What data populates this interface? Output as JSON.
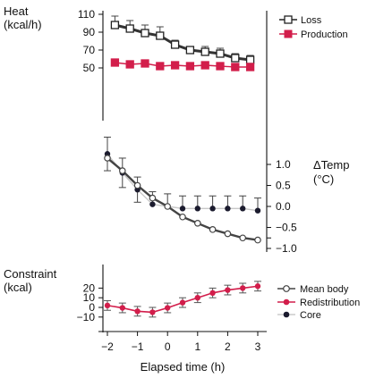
{
  "chart_data": [
    {
      "type": "line",
      "panel": "heat",
      "ylabel": "Heat\n(kcal/h)",
      "ylim": [
        40,
        110
      ],
      "yticks": [
        50,
        70,
        90,
        110
      ],
      "x": [
        -1.75,
        -1.25,
        -0.75,
        -0.25,
        0.25,
        0.75,
        1.25,
        1.75,
        2.25,
        2.75
      ],
      "series": [
        {
          "name": "Loss",
          "marker": "open-square",
          "color": "#222222",
          "values": [
            98,
            94,
            89,
            86,
            76,
            70,
            68,
            66,
            61,
            59
          ],
          "err": [
            10,
            9,
            9,
            10,
            5,
            4,
            6,
            6,
            5,
            5
          ]
        },
        {
          "name": "Production",
          "marker": "filled-square",
          "color": "#d21e4b",
          "values": [
            56,
            54,
            55,
            52,
            53,
            52,
            53,
            52,
            51,
            51
          ],
          "err": [
            4,
            4,
            4,
            4,
            4,
            4,
            4,
            4,
            4,
            4
          ]
        }
      ],
      "legend": "top-right"
    },
    {
      "type": "line",
      "panel": "temperature",
      "ylabel": "ΔTemp\n(°C)",
      "ylim": [
        -1.25,
        1.25
      ],
      "yticks": [
        1.0,
        0.5,
        0.0,
        -0.5,
        -1.0
      ],
      "yticklabels": [
        "1.0",
        "0.5",
        "0.0",
        "−0.5",
        "−1.0"
      ],
      "series": [
        {
          "name": "Mean body",
          "marker": "open-circle",
          "x": [
            -2,
            -1.5,
            -1,
            -0.5,
            0,
            0.5,
            1,
            1.5,
            2,
            2.5,
            3
          ],
          "values": [
            1.15,
            0.85,
            0.5,
            0.2,
            0.0,
            -0.25,
            -0.4,
            -0.55,
            -0.65,
            -0.75,
            -0.8
          ]
        },
        {
          "name": "Core",
          "marker": "filled-circle",
          "x": [
            -2,
            -1.5,
            -1,
            -0.5,
            0,
            0.5,
            1,
            1.5,
            2,
            2.5,
            3
          ],
          "values": [
            1.25,
            0.8,
            0.4,
            0.05,
            0.0,
            -0.05,
            -0.05,
            -0.05,
            -0.05,
            -0.05,
            -0.1
          ],
          "err": [
            0.4,
            0.35,
            0.3,
            0.3,
            0.3,
            0.3,
            0.3,
            0.3,
            0.3,
            0.3,
            0.3
          ]
        }
      ],
      "legend": "none"
    },
    {
      "type": "line",
      "panel": "constraint",
      "ylabel": "Constraint\n(kcal)",
      "ylim": [
        -12,
        27
      ],
      "yticks": [
        20,
        10,
        0,
        -10
      ],
      "yticklabels": [
        "20",
        "10",
        "0",
        "−10"
      ],
      "series": [
        {
          "name": "Redistribution",
          "marker": "filled-circle",
          "color": "#d21e4b",
          "x": [
            -2,
            -1.5,
            -1,
            -0.5,
            0,
            0.5,
            1,
            1.5,
            2,
            2.5,
            3
          ],
          "values": [
            2,
            -0.5,
            -4,
            -5,
            -0.5,
            5,
            10,
            15,
            18,
            20,
            22
          ],
          "err": [
            5,
            5,
            5,
            5,
            5,
            5,
            5,
            5,
            5,
            5,
            5
          ]
        }
      ],
      "legend": "bottom-right"
    }
  ],
  "xaxis": {
    "label": "Elapsed time (h)",
    "range": [
      -2.3,
      3.3
    ],
    "ticks": [
      -2,
      -1,
      0,
      1,
      2,
      3
    ],
    "ticklabels": [
      "−2",
      "−1",
      "0",
      "1",
      "2",
      "3"
    ]
  },
  "legend_bottom": [
    "Mean body",
    "Redistribution",
    "Core"
  ],
  "colors": {
    "production": "#d21e4b",
    "loss": "#222222",
    "mean_body": "#444444",
    "core": "#1b1b2e",
    "error_bar": "#444444"
  }
}
